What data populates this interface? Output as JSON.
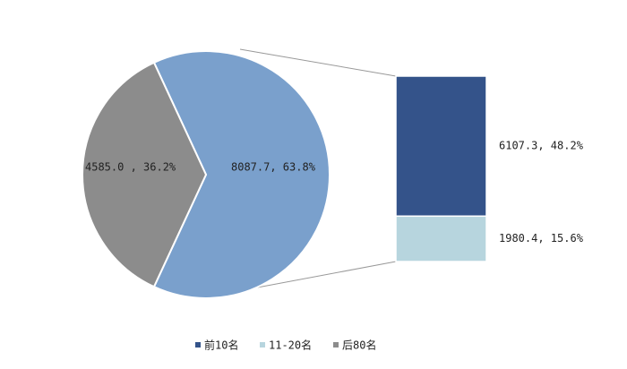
{
  "chart_data": {
    "type": "bar-of-pie",
    "pie": {
      "values": [
        8087.7,
        4585.0
      ],
      "value_labels": [
        "8087.7, 63.8%",
        "4585.0 , 36.2%"
      ],
      "colors": [
        "#7aa0cc",
        "#8c8c8c"
      ]
    },
    "bar": {
      "values": [
        6107.3,
        1980.4
      ],
      "value_labels": [
        "6107.3, 48.2%",
        "1980.4, 15.6%"
      ],
      "colors": [
        "#34538a",
        "#b7d5de"
      ]
    },
    "legend": {
      "position": "bottom",
      "names": [
        "前10名",
        "11-20名",
        "后80名"
      ],
      "colors": [
        "#34538a",
        "#b7d5de",
        "#8c8c8c"
      ]
    }
  }
}
